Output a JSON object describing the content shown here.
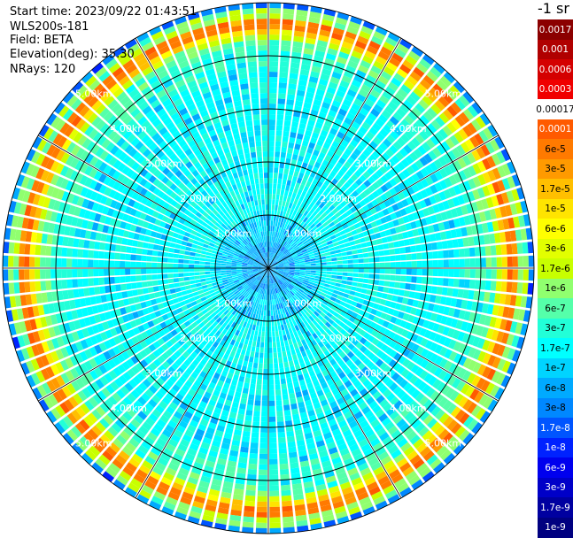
{
  "info": {
    "start_time": "Start time: 2023/09/22 01:43:51",
    "instrument": "WLS200s-181",
    "field": "Field: BETA",
    "elevation": "Elevation(deg): 35.30",
    "nrays": "NRays: 120"
  },
  "colorbar": {
    "title": "-1 sr",
    "entries": [
      {
        "label": "0.0017",
        "color": "#8b0000",
        "text": "#ffffff"
      },
      {
        "label": "0.001",
        "color": "#b00000",
        "text": "#ffffff"
      },
      {
        "label": "0.0006",
        "color": "#d40000",
        "text": "#ffffff"
      },
      {
        "label": "0.0003",
        "color": "#f00000",
        "text": "#ffffff"
      },
      {
        "label": "0.00017",
        "color": "#ffffff",
        "text": "#000000"
      },
      {
        "label": "0.0001",
        "color": "#ff5a00",
        "text": "#ffffff"
      },
      {
        "label": "6e-5",
        "color": "#ff7a00",
        "text": "#000000"
      },
      {
        "label": "3e-5",
        "color": "#ff9a00",
        "text": "#000000"
      },
      {
        "label": "1.7e-5",
        "color": "#ffbf00",
        "text": "#000000"
      },
      {
        "label": "1e-5",
        "color": "#ffe400",
        "text": "#000000"
      },
      {
        "label": "6e-6",
        "color": "#ffff00",
        "text": "#000000"
      },
      {
        "label": "3e-6",
        "color": "#e2ff00",
        "text": "#000000"
      },
      {
        "label": "1.7e-6",
        "color": "#c8ff00",
        "text": "#000000"
      },
      {
        "label": "1e-6",
        "color": "#90ff6f",
        "text": "#000000"
      },
      {
        "label": "6e-7",
        "color": "#55ffaa",
        "text": "#000000"
      },
      {
        "label": "3e-7",
        "color": "#22ffd8",
        "text": "#000000"
      },
      {
        "label": "1.7e-7",
        "color": "#00ffff",
        "text": "#000000"
      },
      {
        "label": "1e-7",
        "color": "#00d4ff",
        "text": "#000000"
      },
      {
        "label": "6e-8",
        "color": "#00aaff",
        "text": "#000000"
      },
      {
        "label": "3e-8",
        "color": "#0088ff",
        "text": "#000000"
      },
      {
        "label": "1.7e-8",
        "color": "#0055ff",
        "text": "#ffffff"
      },
      {
        "label": "1e-8",
        "color": "#0022ff",
        "text": "#ffffff"
      },
      {
        "label": "6e-9",
        "color": "#0000ee",
        "text": "#ffffff"
      },
      {
        "label": "3e-9",
        "color": "#0000c8",
        "text": "#ffffff"
      },
      {
        "label": "1.7e-9",
        "color": "#0000a0",
        "text": "#ffffff"
      },
      {
        "label": "1e-9",
        "color": "#000080",
        "text": "#ffffff"
      }
    ]
  },
  "chart_data": {
    "type": "heatmap",
    "projection": "polar (PPI scan)",
    "field": "BETA",
    "n_rays": 120,
    "max_range_km": 5.0,
    "range_rings_km": [
      1.0,
      2.0,
      3.0,
      4.0,
      5.0
    ],
    "range_ring_labels": [
      "1.00km",
      "2.00km",
      "3.00km",
      "4.00km",
      "5.00km"
    ],
    "spoke_angles_deg": [
      0,
      30,
      60,
      90,
      120,
      150,
      180,
      210,
      240,
      270,
      300,
      330
    ],
    "radial_profile": [
      {
        "range_km": 0.0,
        "level": "6e-8"
      },
      {
        "range_km": 0.5,
        "level": "1e-7"
      },
      {
        "range_km": 1.0,
        "level": "1.7e-7"
      },
      {
        "range_km": 2.0,
        "level": "1.7e-7"
      },
      {
        "range_km": 3.0,
        "level": "1.7e-7"
      },
      {
        "range_km": 3.7,
        "level": "3e-7"
      },
      {
        "range_km": 4.1,
        "level": "6e-7"
      },
      {
        "range_km": 4.3,
        "level": "1.7e-6"
      },
      {
        "range_km": 4.45,
        "level": "1e-5"
      },
      {
        "range_km": 4.55,
        "level": "6e-5"
      },
      {
        "range_km": 4.7,
        "level": "1e-6"
      },
      {
        "range_km": 4.9,
        "level": "3e-8"
      },
      {
        "range_km": 5.0,
        "level": "1e-8"
      }
    ]
  }
}
